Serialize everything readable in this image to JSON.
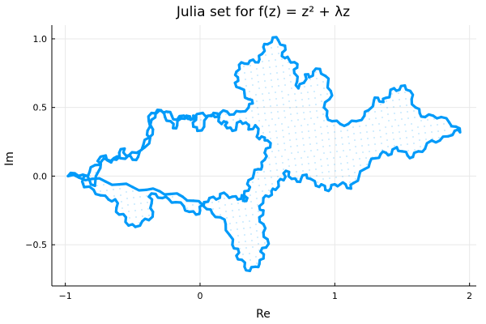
{
  "chart_data": {
    "type": "scatter",
    "title": "Julia set for f(z) = z² + λz",
    "xlabel": "Re",
    "ylabel": "Im",
    "xlim": [
      -1.1,
      2.05
    ],
    "ylim": [
      -0.8,
      1.1
    ],
    "xticks": [
      {
        "value": -1,
        "label": "−1"
      },
      {
        "value": 0,
        "label": "0"
      },
      {
        "value": 1,
        "label": "1"
      },
      {
        "value": 2,
        "label": "2"
      }
    ],
    "yticks": [
      {
        "value": -0.5,
        "label": "−0.5"
      },
      {
        "value": 0.0,
        "label": "0.0"
      },
      {
        "value": 0.5,
        "label": "0.5"
      },
      {
        "value": 1.0,
        "label": "1.0"
      }
    ],
    "grid": true,
    "legend": "none",
    "marker_color": "#009AF9",
    "series": [
      {
        "points": [
          [
            -0.98,
            0.0
          ],
          [
            -0.93,
            0.02
          ],
          [
            -0.87,
            0.01
          ],
          [
            -0.82,
            -0.03
          ],
          [
            -0.78,
            -0.07
          ],
          [
            -0.74,
            0.06
          ],
          [
            -0.76,
            0.11
          ],
          [
            -0.7,
            0.15
          ],
          [
            -0.66,
            0.1
          ],
          [
            -0.62,
            0.12
          ],
          [
            -0.6,
            0.17
          ],
          [
            -0.56,
            0.2
          ],
          [
            -0.55,
            0.15
          ],
          [
            -0.5,
            0.12
          ],
          [
            -0.46,
            0.14
          ],
          [
            -0.41,
            0.21
          ],
          [
            -0.37,
            0.28
          ],
          [
            -0.39,
            0.33
          ],
          [
            -0.38,
            0.4
          ],
          [
            -0.36,
            0.46
          ],
          [
            -0.3,
            0.48
          ],
          [
            -0.26,
            0.43
          ],
          [
            -0.22,
            0.4
          ],
          [
            -0.2,
            0.35
          ],
          [
            -0.17,
            0.37
          ],
          [
            -0.14,
            0.42
          ],
          [
            -0.1,
            0.44
          ],
          [
            -0.07,
            0.41
          ],
          [
            -0.05,
            0.44
          ],
          [
            -0.03,
            0.41
          ],
          [
            -0.05,
            0.36
          ],
          [
            -0.02,
            0.33
          ],
          [
            0.03,
            0.36
          ],
          [
            0.06,
            0.44
          ],
          [
            0.1,
            0.46
          ],
          [
            0.14,
            0.43
          ],
          [
            0.16,
            0.38
          ],
          [
            0.2,
            0.39
          ],
          [
            0.2,
            0.35
          ],
          [
            0.24,
            0.33
          ],
          [
            0.27,
            0.36
          ],
          [
            0.3,
            0.4
          ],
          [
            0.34,
            0.39
          ],
          [
            0.36,
            0.34
          ],
          [
            0.41,
            0.37
          ],
          [
            0.43,
            0.31
          ],
          [
            0.44,
            0.27
          ],
          [
            0.48,
            0.28
          ],
          [
            0.5,
            0.26
          ],
          [
            0.52,
            0.21
          ],
          [
            0.48,
            0.17
          ],
          [
            0.48,
            0.12
          ],
          [
            0.46,
            0.07
          ],
          [
            0.43,
            0.05
          ],
          [
            0.4,
            0.02
          ],
          [
            0.36,
            -0.03
          ],
          [
            0.37,
            -0.08
          ],
          [
            0.33,
            -0.11
          ],
          [
            0.35,
            -0.16
          ],
          [
            0.32,
            -0.18
          ],
          [
            0.31,
            -0.14
          ],
          [
            0.28,
            -0.17
          ],
          [
            0.24,
            -0.15
          ],
          [
            0.2,
            -0.14
          ],
          [
            0.15,
            -0.13
          ],
          [
            0.12,
            -0.17
          ],
          [
            0.07,
            -0.16
          ],
          [
            0.03,
            -0.19
          ],
          [
            0.05,
            -0.24
          ],
          [
            0.09,
            -0.27
          ],
          [
            0.15,
            -0.3
          ],
          [
            0.19,
            -0.35
          ],
          [
            0.22,
            -0.43
          ],
          [
            0.24,
            -0.5
          ],
          [
            0.28,
            -0.53
          ],
          [
            0.27,
            -0.58
          ],
          [
            0.31,
            -0.61
          ],
          [
            0.33,
            -0.66
          ],
          [
            0.37,
            -0.69
          ],
          [
            0.41,
            -0.66
          ],
          [
            0.44,
            -0.64
          ],
          [
            0.47,
            -0.6
          ],
          [
            0.45,
            -0.55
          ],
          [
            0.49,
            -0.52
          ],
          [
            0.5,
            -0.46
          ],
          [
            0.47,
            -0.41
          ],
          [
            0.47,
            -0.35
          ],
          [
            0.44,
            -0.3
          ],
          [
            0.47,
            -0.25
          ],
          [
            0.44,
            -0.22
          ],
          [
            0.47,
            -0.16
          ],
          [
            0.51,
            -0.15
          ],
          [
            0.53,
            -0.11
          ],
          [
            0.56,
            -0.1
          ],
          [
            0.58,
            -0.04
          ],
          [
            0.62,
            -0.03
          ],
          [
            0.62,
            0.02
          ],
          [
            0.66,
            0.03
          ],
          [
            0.68,
            -0.02
          ],
          [
            0.72,
            -0.04
          ],
          [
            0.75,
            -0.02
          ],
          [
            0.79,
            0.01
          ],
          [
            0.82,
            -0.02
          ],
          [
            0.86,
            -0.07
          ],
          [
            0.9,
            -0.06
          ],
          [
            0.93,
            -0.1
          ],
          [
            0.97,
            -0.09
          ],
          [
            1.0,
            -0.06
          ],
          [
            1.04,
            -0.06
          ],
          [
            1.08,
            -0.06
          ],
          [
            1.12,
            -0.09
          ],
          [
            1.14,
            -0.05
          ],
          [
            1.18,
            0.0
          ],
          [
            1.22,
            0.05
          ],
          [
            1.26,
            0.1
          ],
          [
            1.3,
            0.13
          ],
          [
            1.34,
            0.16
          ],
          [
            1.38,
            0.17
          ],
          [
            1.42,
            0.16
          ],
          [
            1.46,
            0.21
          ],
          [
            1.5,
            0.18
          ],
          [
            1.54,
            0.15
          ],
          [
            1.58,
            0.14
          ],
          [
            1.62,
            0.18
          ],
          [
            1.67,
            0.2
          ],
          [
            1.72,
            0.26
          ],
          [
            1.78,
            0.26
          ],
          [
            1.84,
            0.29
          ],
          [
            1.89,
            0.33
          ],
          [
            1.93,
            0.32
          ],
          [
            1.9,
            0.36
          ],
          [
            1.85,
            0.39
          ],
          [
            1.79,
            0.43
          ],
          [
            1.73,
            0.44
          ],
          [
            1.67,
            0.43
          ],
          [
            1.63,
            0.46
          ],
          [
            1.6,
            0.5
          ],
          [
            1.57,
            0.56
          ],
          [
            1.56,
            0.62
          ],
          [
            1.52,
            0.66
          ],
          [
            1.48,
            0.63
          ],
          [
            1.44,
            0.64
          ],
          [
            1.41,
            0.6
          ],
          [
            1.38,
            0.57
          ],
          [
            1.36,
            0.54
          ],
          [
            1.32,
            0.57
          ],
          [
            1.29,
            0.55
          ],
          [
            1.25,
            0.48
          ],
          [
            1.22,
            0.44
          ],
          [
            1.16,
            0.4
          ],
          [
            1.1,
            0.38
          ],
          [
            1.04,
            0.38
          ],
          [
            0.98,
            0.4
          ],
          [
            0.94,
            0.44
          ],
          [
            0.92,
            0.5
          ],
          [
            0.96,
            0.56
          ],
          [
            0.97,
            0.62
          ],
          [
            0.95,
            0.68
          ],
          [
            0.93,
            0.73
          ],
          [
            0.89,
            0.78
          ],
          [
            0.84,
            0.76
          ],
          [
            0.81,
            0.72
          ],
          [
            0.78,
            0.74
          ],
          [
            0.77,
            0.68
          ],
          [
            0.73,
            0.64
          ],
          [
            0.72,
            0.69
          ],
          [
            0.7,
            0.75
          ],
          [
            0.72,
            0.79
          ],
          [
            0.7,
            0.83
          ],
          [
            0.66,
            0.85
          ],
          [
            0.63,
            0.86
          ],
          [
            0.61,
            0.9
          ],
          [
            0.63,
            0.95
          ],
          [
            0.58,
            0.99
          ],
          [
            0.54,
            1.01
          ],
          [
            0.5,
            0.96
          ],
          [
            0.47,
            0.94
          ],
          [
            0.46,
            0.89
          ],
          [
            0.44,
            0.85
          ],
          [
            0.41,
            0.83
          ],
          [
            0.37,
            0.84
          ],
          [
            0.33,
            0.82
          ],
          [
            0.29,
            0.81
          ],
          [
            0.27,
            0.76
          ],
          [
            0.28,
            0.72
          ],
          [
            0.26,
            0.68
          ],
          [
            0.3,
            0.64
          ],
          [
            0.33,
            0.6
          ],
          [
            0.36,
            0.56
          ],
          [
            0.39,
            0.53
          ],
          [
            0.36,
            0.5
          ],
          [
            0.3,
            0.47
          ],
          [
            0.25,
            0.45
          ],
          [
            0.2,
            0.47
          ],
          [
            0.15,
            0.46
          ],
          [
            0.11,
            0.43
          ],
          [
            0.07,
            0.44
          ],
          [
            0.02,
            0.46
          ],
          [
            -0.05,
            0.42
          ],
          [
            -0.12,
            0.44
          ],
          [
            -0.17,
            0.41
          ],
          [
            -0.21,
            0.44
          ],
          [
            -0.25,
            0.47
          ],
          [
            -0.29,
            0.48
          ],
          [
            -0.33,
            0.46
          ],
          [
            -0.36,
            0.41
          ],
          [
            -0.35,
            0.34
          ],
          [
            -0.38,
            0.28
          ],
          [
            -0.42,
            0.23
          ],
          [
            -0.47,
            0.17
          ],
          [
            -0.53,
            0.15
          ],
          [
            -0.59,
            0.13
          ],
          [
            -0.64,
            0.13
          ],
          [
            -0.69,
            0.12
          ],
          [
            -0.73,
            0.11
          ],
          [
            -0.78,
            0.08
          ],
          [
            -0.82,
            0.03
          ],
          [
            -0.86,
            0.0
          ],
          [
            -0.86,
            -0.08
          ],
          [
            -0.79,
            -0.1
          ],
          [
            -0.74,
            -0.14
          ],
          [
            -0.68,
            -0.17
          ],
          [
            -0.63,
            -0.17
          ],
          [
            -0.62,
            -0.23
          ],
          [
            -0.6,
            -0.28
          ],
          [
            -0.55,
            -0.3
          ],
          [
            -0.53,
            -0.36
          ],
          [
            -0.48,
            -0.37
          ],
          [
            -0.43,
            -0.33
          ],
          [
            -0.38,
            -0.32
          ],
          [
            -0.35,
            -0.26
          ],
          [
            -0.36,
            -0.2
          ],
          [
            -0.38,
            -0.15
          ],
          [
            -0.33,
            -0.13
          ],
          [
            -0.28,
            -0.16
          ],
          [
            -0.23,
            -0.17
          ],
          [
            -0.18,
            -0.19
          ],
          [
            -0.12,
            -0.22
          ],
          [
            -0.08,
            -0.26
          ],
          [
            -0.03,
            -0.28
          ],
          [
            0.0,
            -0.25
          ],
          [
            0.02,
            -0.21
          ],
          [
            -0.05,
            -0.18
          ],
          [
            -0.13,
            -0.15
          ],
          [
            -0.22,
            -0.13
          ],
          [
            -0.3,
            -0.11
          ],
          [
            -0.4,
            -0.1
          ],
          [
            -0.5,
            -0.08
          ],
          [
            -0.6,
            -0.06
          ],
          [
            -0.7,
            -0.04
          ],
          [
            -0.8,
            -0.02
          ],
          [
            -0.9,
            -0.01
          ],
          [
            -0.98,
            0.0
          ]
        ]
      }
    ]
  }
}
